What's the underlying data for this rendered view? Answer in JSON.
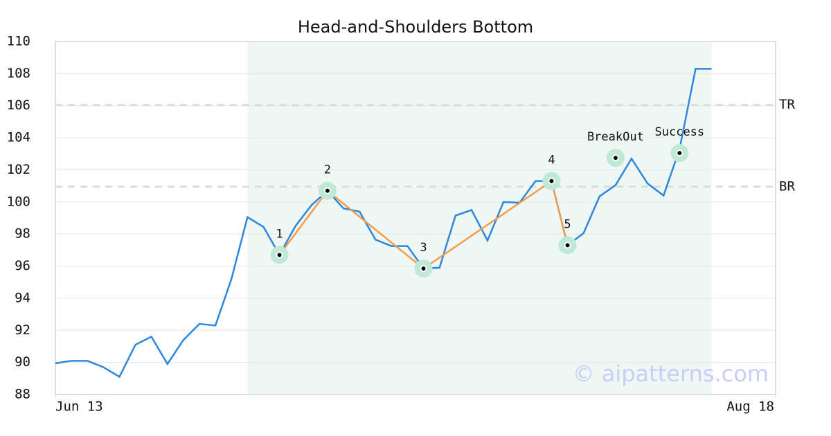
{
  "chart_data": {
    "type": "line",
    "title": "Head-and-Shoulders Bottom",
    "x": [
      0,
      1,
      2,
      3,
      4,
      5,
      6,
      7,
      8,
      9,
      10,
      11,
      12,
      13,
      14,
      15,
      16,
      17,
      18,
      19,
      20,
      21,
      22,
      23,
      24,
      25,
      26,
      27,
      28,
      29,
      30,
      31,
      32,
      33,
      34,
      35,
      36,
      37,
      38,
      39,
      40,
      41
    ],
    "xlim": [
      0,
      45
    ],
    "xticks": [
      {
        "value": 0,
        "label": "Jun 13"
      },
      {
        "value": 45,
        "label": "Aug 18"
      }
    ],
    "ylim": [
      88,
      110
    ],
    "yticks": [
      88,
      90,
      92,
      94,
      96,
      98,
      100,
      102,
      104,
      106,
      108,
      110
    ],
    "grid": true,
    "series": [
      {
        "color": "#2e86de",
        "values": [
          89.94,
          90.1,
          90.1,
          89.7,
          89.1,
          91.1,
          91.6,
          89.9,
          91.4,
          92.4,
          92.3,
          95.2,
          99.05,
          98.45,
          96.7,
          98.5,
          99.8,
          100.7,
          99.6,
          99.4,
          97.65,
          97.25,
          97.25,
          95.85,
          95.9,
          99.15,
          99.5,
          97.6,
          100,
          99.95,
          101.3,
          101.3,
          97.3,
          98.05,
          100.35,
          101.05,
          102.7,
          101.15,
          100.4,
          103.3,
          108.3,
          108.3
        ]
      }
    ],
    "highlight": [
      12,
      41
    ],
    "pattern": {
      "color": "#f39c4a",
      "points": [
        {
          "label": "1",
          "x": 14,
          "y": 96.7
        },
        {
          "label": "2",
          "x": 17,
          "y": 100.7
        },
        {
          "label": "3",
          "x": 23,
          "y": 95.85
        },
        {
          "label": "4",
          "x": 31,
          "y": 101.3
        },
        {
          "label": "5",
          "x": 32,
          "y": 97.3
        }
      ]
    },
    "signals": [
      {
        "label": "BreakOut",
        "x": 35,
        "y": 102.75
      },
      {
        "label": "Success",
        "x": 39,
        "y": 103.05
      }
    ],
    "levels": [
      {
        "label": "TR",
        "value": 106.05
      },
      {
        "label": "BR",
        "value": 100.95
      }
    ],
    "watermark": "© aipatterns.com"
  }
}
